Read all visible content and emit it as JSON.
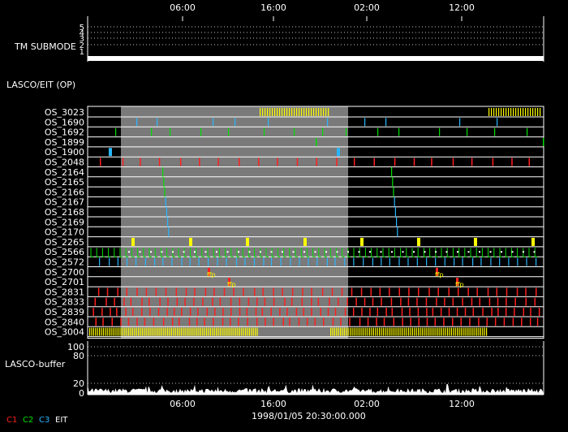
{
  "chart_data": {
    "type": "timeline",
    "time_ticks": [
      "06:00",
      "16:00",
      "02:00",
      "12:00"
    ],
    "date_label": "1998/01/05 20:30:00.000",
    "tm_submode": {
      "label": "TM SUBMODE",
      "levels": [
        "5",
        "4",
        "3",
        "2",
        "1"
      ],
      "value": 1
    },
    "section_title": "LASCO/EIT (OP)",
    "rows": [
      {
        "name": "OS_3023",
        "color": "#ffff00"
      },
      {
        "name": "OS_1690",
        "color": "#29b6ff"
      },
      {
        "name": "OS_1692",
        "color": "#00e000"
      },
      {
        "name": "OS_1899",
        "color": "#00e000"
      },
      {
        "name": "OS_1900",
        "color": "#29b6ff"
      },
      {
        "name": "OS_2048",
        "color": "#ff2020"
      },
      {
        "name": "OS_2164",
        "color": "#00e000"
      },
      {
        "name": "OS_2165",
        "color": "#00e000"
      },
      {
        "name": "OS_2166",
        "color": "#00e000"
      },
      {
        "name": "OS_2167",
        "color": "#29b6ff"
      },
      {
        "name": "OS_2168",
        "color": "#29b6ff"
      },
      {
        "name": "OS_2169",
        "color": "#29b6ff"
      },
      {
        "name": "OS_2170",
        "color": "#29b6ff"
      },
      {
        "name": "OS_2265",
        "color": "#ffff00"
      },
      {
        "name": "OS_2566",
        "color": "#00e000"
      },
      {
        "name": "OS_2572",
        "color": "#29b6ff"
      },
      {
        "name": "OS_2700",
        "color": "#ff2020"
      },
      {
        "name": "OS_2701",
        "color": "#ff2020"
      },
      {
        "name": "OS_2831",
        "color": "#ff2020"
      },
      {
        "name": "OS_2833",
        "color": "#ff2020"
      },
      {
        "name": "OS_2839",
        "color": "#ff2020"
      },
      {
        "name": "OS_2840",
        "color": "#ff2020"
      },
      {
        "name": "OS_3004",
        "color": "#ffff00"
      }
    ],
    "buffer": {
      "label": "LASCO-buffer",
      "upper_ticks": [
        "100",
        "80"
      ],
      "lower_ticks": [
        "20",
        "0"
      ]
    },
    "legend": [
      {
        "text": "C1",
        "color": "#ff2020"
      },
      {
        "text": "C2",
        "color": "#00e000"
      },
      {
        "text": "C3",
        "color": "#29b6ff"
      },
      {
        "text": "EIT",
        "color": "#ffffff"
      }
    ]
  }
}
